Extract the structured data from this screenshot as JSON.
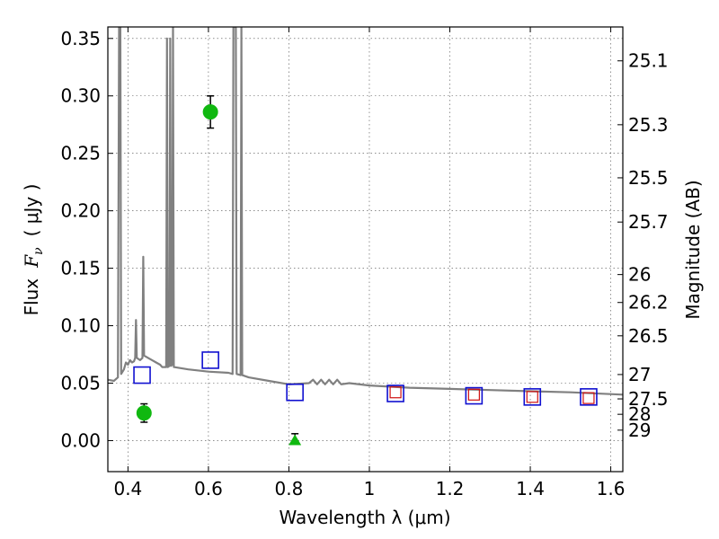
{
  "chart_data": {
    "type": "scatter",
    "xlabel": "Wavelength  λ (μm)",
    "ylabel_text": "Flux",
    "ylabel_symbol": "F",
    "ylabel_sub": "ν",
    "ylabel_unit": "( μJy )",
    "y2label": "Magnitude (AB)",
    "xlim": [
      0.35,
      1.63
    ],
    "ylim": [
      -0.027,
      0.36
    ],
    "grid": true,
    "xticks": [
      0.4,
      0.6,
      0.8,
      1.0,
      1.2,
      1.4,
      1.6
    ],
    "xtick_labels": [
      "0.4",
      "0.6",
      "0.8",
      "1",
      "1.2",
      "1.4",
      "1.6"
    ],
    "yticks": [
      0.0,
      0.05,
      0.1,
      0.15,
      0.2,
      0.25,
      0.3,
      0.35
    ],
    "ytick_labels": [
      "0.00",
      "0.05",
      "0.10",
      "0.15",
      "0.20",
      "0.25",
      "0.30",
      "0.35"
    ],
    "magnitude_ticks": [
      {
        "label": "25.1",
        "flux": 0.3305
      },
      {
        "label": "25.3",
        "flux": 0.2749
      },
      {
        "label": "25.5",
        "flux": 0.2287
      },
      {
        "label": "25.7",
        "flux": 0.1902
      },
      {
        "label": "26",
        "flux": 0.1445
      },
      {
        "label": "26.2",
        "flux": 0.1202
      },
      {
        "label": "26.5",
        "flux": 0.0912
      },
      {
        "label": "27",
        "flux": 0.0575
      },
      {
        "label": "27.5",
        "flux": 0.0363
      },
      {
        "label": "28",
        "flux": 0.0229
      },
      {
        "label": "29",
        "flux": 0.0091
      }
    ],
    "series": [
      {
        "kind": "model-spectrum",
        "color": "#808080",
        "points": [
          [
            0.35,
            0.053
          ],
          [
            0.365,
            0.052
          ],
          [
            0.375,
            0.055
          ],
          [
            0.378,
            0.36
          ],
          [
            0.381,
            0.36
          ],
          [
            0.383,
            0.058
          ],
          [
            0.39,
            0.062
          ],
          [
            0.395,
            0.068
          ],
          [
            0.4,
            0.066
          ],
          [
            0.405,
            0.07
          ],
          [
            0.41,
            0.068
          ],
          [
            0.415,
            0.069
          ],
          [
            0.418,
            0.072
          ],
          [
            0.42,
            0.105
          ],
          [
            0.422,
            0.072
          ],
          [
            0.43,
            0.07
          ],
          [
            0.436,
            0.072
          ],
          [
            0.438,
            0.16
          ],
          [
            0.44,
            0.074
          ],
          [
            0.45,
            0.072
          ],
          [
            0.46,
            0.07
          ],
          [
            0.47,
            0.068
          ],
          [
            0.48,
            0.066
          ],
          [
            0.485,
            0.064
          ],
          [
            0.495,
            0.064
          ],
          [
            0.497,
            0.35
          ],
          [
            0.499,
            0.064
          ],
          [
            0.503,
            0.065
          ],
          [
            0.505,
            0.35
          ],
          [
            0.507,
            0.065
          ],
          [
            0.51,
            0.066
          ],
          [
            0.512,
            0.36
          ],
          [
            0.514,
            0.064
          ],
          [
            0.55,
            0.062
          ],
          [
            0.6,
            0.06
          ],
          [
            0.65,
            0.059
          ],
          [
            0.66,
            0.058
          ],
          [
            0.662,
            0.36
          ],
          [
            0.668,
            0.36
          ],
          [
            0.67,
            0.058
          ],
          [
            0.68,
            0.057
          ],
          [
            0.682,
            0.36
          ],
          [
            0.684,
            0.057
          ],
          [
            0.7,
            0.055
          ],
          [
            0.75,
            0.052
          ],
          [
            0.8,
            0.049
          ],
          [
            0.85,
            0.05
          ],
          [
            0.86,
            0.053
          ],
          [
            0.87,
            0.049
          ],
          [
            0.88,
            0.053
          ],
          [
            0.89,
            0.049
          ],
          [
            0.9,
            0.053
          ],
          [
            0.91,
            0.049
          ],
          [
            0.92,
            0.053
          ],
          [
            0.93,
            0.049
          ],
          [
            0.95,
            0.05
          ],
          [
            1.0,
            0.048
          ],
          [
            1.1,
            0.046
          ],
          [
            1.2,
            0.045
          ],
          [
            1.3,
            0.044
          ],
          [
            1.4,
            0.043
          ],
          [
            1.5,
            0.042
          ],
          [
            1.63,
            0.04
          ]
        ]
      },
      {
        "kind": "open-square",
        "color": "#1010d0",
        "points": [
          [
            0.435,
            0.057
          ],
          [
            0.605,
            0.07
          ],
          [
            0.815,
            0.042
          ],
          [
            1.065,
            0.041
          ],
          [
            1.26,
            0.039
          ],
          [
            1.405,
            0.038
          ],
          [
            1.545,
            0.038
          ]
        ]
      },
      {
        "kind": "small-open-square",
        "color": "#d01010",
        "points": [
          [
            1.065,
            0.042
          ],
          [
            1.26,
            0.04
          ],
          [
            1.405,
            0.038
          ],
          [
            1.545,
            0.037
          ]
        ]
      },
      {
        "kind": "circle",
        "color": "#10b810",
        "points": [
          [
            0.44,
            0.024,
            0.008
          ],
          [
            0.605,
            0.286,
            0.014
          ]
        ]
      },
      {
        "kind": "triangle",
        "color": "#10b810",
        "points": [
          [
            0.815,
            0.0,
            0.006
          ]
        ]
      }
    ]
  }
}
